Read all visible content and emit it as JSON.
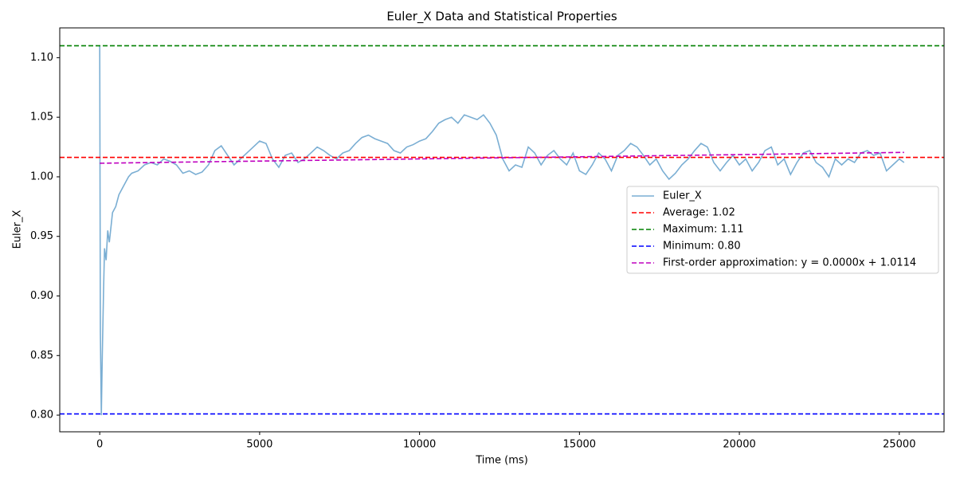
{
  "chart_data": {
    "type": "line",
    "title": "Euler_X Data and Statistical Properties",
    "x_label": "Time (ms)",
    "y_label": "Euler_X",
    "xlim": [
      -1250,
      26400
    ],
    "ylim": [
      0.786,
      1.125
    ],
    "xticks": [
      0,
      5000,
      10000,
      15000,
      20000,
      25000
    ],
    "yticks": [
      {
        "value": 0.8,
        "label": "0.80"
      },
      0.85,
      {
        "value": 0.9,
        "label": "0.90"
      },
      0.95,
      {
        "value": 1.0,
        "label": "1.00"
      },
      1.05,
      {
        "value": 1.1,
        "label": "1.10"
      }
    ],
    "legend": "center right",
    "series": [
      {
        "name": "Euler_X",
        "color": "#7aaed3",
        "dashed": false,
        "x": [
          0,
          20,
          50,
          80,
          120,
          150,
          200,
          250,
          300,
          400,
          500,
          600,
          700,
          800,
          900,
          1000,
          1200,
          1400,
          1600,
          1800,
          2000,
          2200,
          2400,
          2600,
          2800,
          3000,
          3200,
          3400,
          3600,
          3800,
          4000,
          4200,
          4400,
          4600,
          4800,
          5000,
          5200,
          5400,
          5600,
          5800,
          6000,
          6200,
          6400,
          6600,
          6800,
          7000,
          7200,
          7400,
          7600,
          7800,
          8000,
          8200,
          8400,
          8600,
          8800,
          9000,
          9200,
          9400,
          9600,
          9800,
          10000,
          10200,
          10400,
          10600,
          10800,
          11000,
          11200,
          11400,
          11600,
          11800,
          12000,
          12200,
          12400,
          12600,
          12800,
          13000,
          13200,
          13400,
          13600,
          13800,
          14000,
          14200,
          14400,
          14600,
          14800,
          15000,
          15200,
          15400,
          15600,
          15800,
          16000,
          16200,
          16400,
          16600,
          16800,
          17000,
          17200,
          17400,
          17600,
          17800,
          18000,
          18200,
          18400,
          18600,
          18800,
          19000,
          19200,
          19400,
          19600,
          19800,
          20000,
          20200,
          20400,
          20600,
          20800,
          21000,
          21200,
          21400,
          21600,
          21800,
          22000,
          22200,
          22400,
          22600,
          22800,
          23000,
          23200,
          23400,
          23600,
          23800,
          24000,
          24200,
          24400,
          24600,
          24800,
          25000,
          25150
        ],
        "values": [
          1.11,
          0.87,
          0.8,
          0.85,
          0.905,
          0.94,
          0.93,
          0.955,
          0.945,
          0.97,
          0.975,
          0.985,
          0.99,
          0.995,
          1.0,
          1.003,
          1.005,
          1.01,
          1.012,
          1.01,
          1.015,
          1.013,
          1.01,
          1.003,
          1.005,
          1.002,
          1.004,
          1.01,
          1.022,
          1.026,
          1.018,
          1.01,
          1.015,
          1.02,
          1.025,
          1.03,
          1.028,
          1.015,
          1.008,
          1.018,
          1.02,
          1.012,
          1.015,
          1.02,
          1.025,
          1.022,
          1.018,
          1.015,
          1.02,
          1.022,
          1.028,
          1.033,
          1.035,
          1.032,
          1.03,
          1.028,
          1.022,
          1.02,
          1.025,
          1.027,
          1.03,
          1.032,
          1.038,
          1.045,
          1.048,
          1.05,
          1.045,
          1.052,
          1.05,
          1.048,
          1.052,
          1.045,
          1.035,
          1.015,
          1.005,
          1.01,
          1.008,
          1.025,
          1.02,
          1.01,
          1.018,
          1.022,
          1.015,
          1.01,
          1.02,
          1.005,
          1.002,
          1.01,
          1.02,
          1.015,
          1.005,
          1.018,
          1.022,
          1.028,
          1.025,
          1.018,
          1.01,
          1.015,
          1.005,
          0.998,
          1.003,
          1.01,
          1.015,
          1.022,
          1.028,
          1.025,
          1.012,
          1.005,
          1.012,
          1.018,
          1.01,
          1.015,
          1.005,
          1.012,
          1.022,
          1.025,
          1.01,
          1.015,
          1.002,
          1.012,
          1.02,
          1.022,
          1.012,
          1.008,
          1.0,
          1.015,
          1.01,
          1.015,
          1.012,
          1.02,
          1.022,
          1.018,
          1.02,
          1.005,
          1.01,
          1.015,
          1.012
        ]
      },
      {
        "name": "Average: 1.02",
        "color": "#ff0000",
        "dashed": true,
        "value": 1.0163
      },
      {
        "name": "Maximum: 1.11",
        "color": "#008000",
        "dashed": true,
        "value": 1.11
      },
      {
        "name": "Minimum: 0.80",
        "color": "#0000ff",
        "dashed": true,
        "value": 0.801
      },
      {
        "name": "First-order approximation: y = 0.0000x + 1.0114",
        "color": "#bf00bf",
        "dashed": true,
        "x": [
          0,
          25150
        ],
        "values": [
          1.0114,
          1.0205
        ]
      }
    ]
  }
}
